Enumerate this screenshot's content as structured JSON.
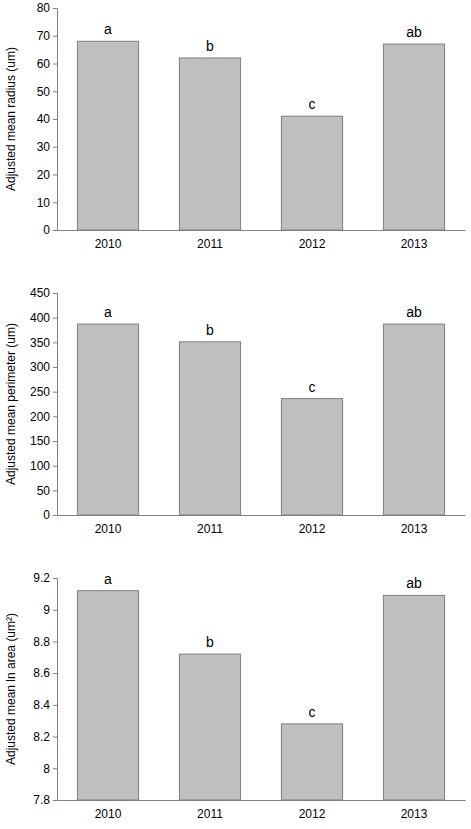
{
  "chart_data": [
    {
      "type": "bar",
      "y_label": "Adjusted mean radius (um)",
      "categories": [
        "2010",
        "2011",
        "2012",
        "2013"
      ],
      "values": [
        68,
        62,
        41,
        67
      ],
      "annotations": [
        "a",
        "b",
        "c",
        "ab"
      ],
      "color": "#c0c0c0",
      "ylim": [
        0,
        80
      ],
      "yticks": [
        0,
        10,
        20,
        30,
        40,
        50,
        60,
        70,
        80
      ],
      "grid": false
    },
    {
      "type": "bar",
      "y_label": "Adjusted mean perimeter (um)",
      "categories": [
        "2010",
        "2011",
        "2012",
        "2013"
      ],
      "values": [
        387,
        351,
        236,
        387
      ],
      "annotations": [
        "a",
        "b",
        "c",
        "ab"
      ],
      "color": "#c0c0c0",
      "ylim": [
        0,
        450
      ],
      "yticks": [
        0,
        50,
        100,
        150,
        200,
        250,
        300,
        350,
        400,
        450
      ],
      "grid": false
    },
    {
      "type": "bar",
      "y_label": "Adjusted mean ln area (um²)",
      "categories": [
        "2010",
        "2011",
        "2012",
        "2013"
      ],
      "values": [
        9.12,
        8.72,
        8.28,
        9.09
      ],
      "annotations": [
        "a",
        "b",
        "c",
        "ab"
      ],
      "color": "#c0c0c0",
      "ylim": [
        7.8,
        9.2
      ],
      "yticks": [
        7.8,
        8,
        8.2,
        8.4,
        8.6,
        8.8,
        9,
        9.2
      ],
      "grid": false
    }
  ]
}
